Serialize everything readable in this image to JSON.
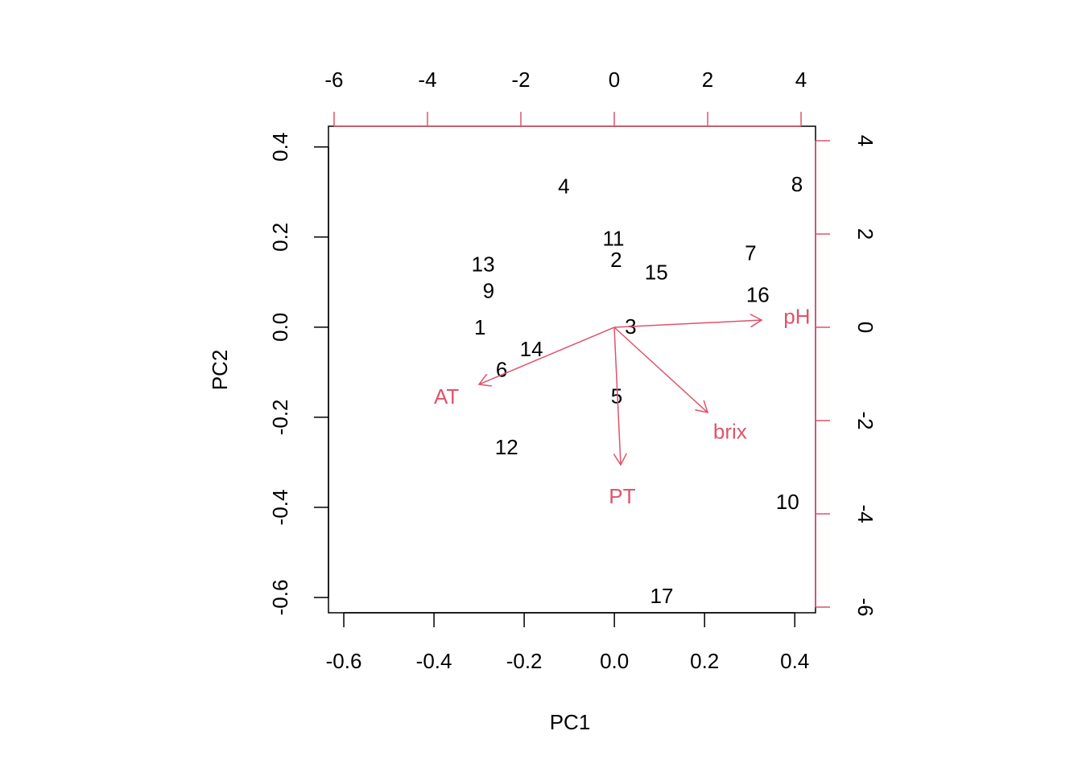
{
  "chart_data": {
    "type": "biplot",
    "xlabel": "PC1",
    "ylabel": "PC2",
    "xlim": [
      -0.634,
      0.446
    ],
    "ylim": [
      -0.634,
      0.446
    ],
    "xticks": [
      -0.6,
      -0.4,
      -0.2,
      {
        "value": 0,
        "label": "0.0"
      },
      0.2,
      0.4
    ],
    "yticks": [
      -0.6,
      -0.4,
      -0.2,
      {
        "value": 0,
        "label": "0.0"
      },
      0.2,
      0.4
    ],
    "x2lim": [
      -6.12,
      4.31
    ],
    "y2lim": [
      -6.12,
      4.31
    ],
    "x2ticks": [
      -6,
      -4,
      -2,
      0,
      2,
      4
    ],
    "y2ticks": [
      -6,
      -4,
      -2,
      0,
      2,
      4
    ],
    "points": {
      "color": "#000000",
      "labels": [
        "1",
        "2",
        "3",
        "4",
        "5",
        "6",
        "7",
        "8",
        "9",
        "10",
        "11",
        "12",
        "13",
        "14",
        "15",
        "16",
        "17"
      ],
      "x": [
        -0.298,
        0.004,
        0.036,
        -0.112,
        0.005,
        -0.25,
        0.302,
        0.405,
        -0.279,
        0.384,
        -0.002,
        -0.239,
        -0.291,
        -0.184,
        0.093,
        0.318,
        0.105
      ],
      "y": [
        -0.004,
        0.146,
        -0.002,
        0.309,
        -0.157,
        -0.098,
        0.161,
        0.314,
        0.077,
        -0.391,
        0.193,
        -0.27,
        0.136,
        -0.052,
        0.118,
        0.068,
        -0.6
      ]
    },
    "vectors": {
      "color": "#DF536B",
      "axis": "y2",
      "names": [
        "AT",
        "PT",
        "brix",
        "pH"
      ],
      "x": [
        -2.897,
        0.138,
        2.0,
        3.155
      ],
      "y": [
        -1.224,
        -2.948,
        -1.828,
        0.155
      ]
    }
  }
}
